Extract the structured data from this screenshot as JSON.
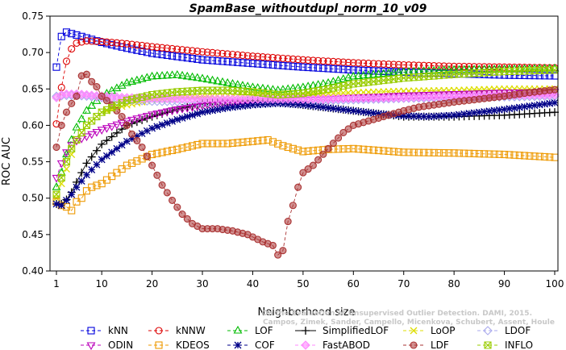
{
  "chart_data": {
    "type": "line",
    "title": "SpamBase_withoutdupl_norm_10_v09",
    "xlabel": "Neighborhood size",
    "ylabel": "ROC AUC",
    "xlim": [
      1,
      100
    ],
    "ylim": [
      0.4,
      0.75
    ],
    "xticks": [
      1,
      10,
      20,
      30,
      40,
      50,
      60,
      70,
      80,
      90,
      100
    ],
    "yticks": [
      "0.40",
      "0.45",
      "0.50",
      "0.55",
      "0.60",
      "0.65",
      "0.70",
      "0.75"
    ],
    "watermark": [
      "Campos, Zimek, Sander, Campello, Micenkova, Schubert, Assent, Houle",
      "On the Evaluation of Unsupervised Outlier Detection. DAMI, 2015."
    ],
    "series": [
      {
        "name": "kNN",
        "color": "#0000dd",
        "marker": "square",
        "dash": "4,3",
        "points": [
          [
            1,
            0.68
          ],
          [
            2,
            0.722
          ],
          [
            3,
            0.728
          ],
          [
            4,
            0.726
          ],
          [
            5,
            0.724
          ],
          [
            7,
            0.72
          ],
          [
            10,
            0.714
          ],
          [
            15,
            0.706
          ],
          [
            20,
            0.699
          ],
          [
            30,
            0.69
          ],
          [
            40,
            0.685
          ],
          [
            50,
            0.68
          ],
          [
            60,
            0.676
          ],
          [
            70,
            0.673
          ],
          [
            80,
            0.671
          ],
          [
            90,
            0.669
          ],
          [
            100,
            0.668
          ]
        ]
      },
      {
        "name": "kNNW",
        "color": "#dd0000",
        "marker": "circle",
        "dash": "4,3",
        "points": [
          [
            1,
            0.602
          ],
          [
            2,
            0.652
          ],
          [
            3,
            0.688
          ],
          [
            4,
            0.705
          ],
          [
            5,
            0.713
          ],
          [
            7,
            0.716
          ],
          [
            10,
            0.715
          ],
          [
            15,
            0.712
          ],
          [
            20,
            0.708
          ],
          [
            30,
            0.701
          ],
          [
            40,
            0.695
          ],
          [
            50,
            0.69
          ],
          [
            60,
            0.686
          ],
          [
            70,
            0.683
          ],
          [
            80,
            0.681
          ],
          [
            90,
            0.68
          ],
          [
            100,
            0.679
          ]
        ]
      },
      {
        "name": "LOF",
        "color": "#00bb00",
        "marker": "triangle",
        "dash": "4,3",
        "points": [
          [
            1,
            0.515
          ],
          [
            2,
            0.535
          ],
          [
            3,
            0.56
          ],
          [
            4,
            0.58
          ],
          [
            5,
            0.597
          ],
          [
            7,
            0.62
          ],
          [
            10,
            0.64
          ],
          [
            15,
            0.658
          ],
          [
            20,
            0.667
          ],
          [
            25,
            0.669
          ],
          [
            30,
            0.664
          ],
          [
            35,
            0.658
          ],
          [
            40,
            0.652
          ],
          [
            45,
            0.648
          ],
          [
            50,
            0.652
          ],
          [
            55,
            0.658
          ],
          [
            60,
            0.667
          ],
          [
            70,
            0.673
          ],
          [
            80,
            0.676
          ],
          [
            90,
            0.677
          ],
          [
            100,
            0.678
          ]
        ]
      },
      {
        "name": "SimplifiedLOF",
        "color": "#000000",
        "marker": "plus",
        "dash": "",
        "points": [
          [
            1,
            0.492
          ],
          [
            2,
            0.492
          ],
          [
            3,
            0.498
          ],
          [
            4,
            0.508
          ],
          [
            5,
            0.522
          ],
          [
            7,
            0.548
          ],
          [
            10,
            0.574
          ],
          [
            15,
            0.6
          ],
          [
            20,
            0.612
          ],
          [
            25,
            0.622
          ],
          [
            30,
            0.63
          ],
          [
            35,
            0.632
          ],
          [
            40,
            0.634
          ],
          [
            45,
            0.632
          ],
          [
            50,
            0.628
          ],
          [
            55,
            0.624
          ],
          [
            60,
            0.62
          ],
          [
            65,
            0.616
          ],
          [
            70,
            0.612
          ],
          [
            75,
            0.612
          ],
          [
            80,
            0.612
          ],
          [
            90,
            0.614
          ],
          [
            100,
            0.618
          ]
        ]
      },
      {
        "name": "LoOP",
        "color": "#dddd00",
        "marker": "x",
        "dash": "4,3",
        "points": [
          [
            1,
            0.5
          ],
          [
            2,
            0.52
          ],
          [
            3,
            0.54
          ],
          [
            4,
            0.56
          ],
          [
            5,
            0.58
          ],
          [
            7,
            0.6
          ],
          [
            10,
            0.618
          ],
          [
            15,
            0.628
          ],
          [
            20,
            0.635
          ],
          [
            30,
            0.64
          ],
          [
            40,
            0.642
          ],
          [
            50,
            0.643
          ],
          [
            60,
            0.645
          ],
          [
            70,
            0.647
          ],
          [
            80,
            0.648
          ],
          [
            90,
            0.65
          ],
          [
            100,
            0.65
          ]
        ]
      },
      {
        "name": "LDOF",
        "color": "#aaaaee",
        "marker": "diamond",
        "dash": "4,3",
        "points": [
          [
            1,
            0.64
          ],
          [
            3,
            0.641
          ],
          [
            5,
            0.641
          ],
          [
            7,
            0.64
          ],
          [
            10,
            0.638
          ],
          [
            15,
            0.635
          ],
          [
            20,
            0.633
          ],
          [
            30,
            0.632
          ],
          [
            40,
            0.632
          ],
          [
            50,
            0.633
          ],
          [
            60,
            0.635
          ],
          [
            70,
            0.637
          ],
          [
            80,
            0.638
          ],
          [
            90,
            0.639
          ],
          [
            100,
            0.64
          ]
        ]
      },
      {
        "name": "ODIN",
        "color": "#bb00bb",
        "marker": "triangle-down",
        "dash": "4,3",
        "points": [
          [
            1,
            0.528
          ],
          [
            2,
            0.548
          ],
          [
            3,
            0.563
          ],
          [
            4,
            0.573
          ],
          [
            5,
            0.579
          ],
          [
            7,
            0.585
          ],
          [
            10,
            0.594
          ],
          [
            15,
            0.606
          ],
          [
            20,
            0.615
          ],
          [
            25,
            0.622
          ],
          [
            30,
            0.627
          ],
          [
            35,
            0.631
          ],
          [
            40,
            0.633
          ],
          [
            45,
            0.634
          ],
          [
            50,
            0.635
          ],
          [
            55,
            0.636
          ],
          [
            60,
            0.638
          ],
          [
            70,
            0.641
          ],
          [
            80,
            0.643
          ],
          [
            90,
            0.645
          ],
          [
            100,
            0.646
          ]
        ]
      },
      {
        "name": "KDEOS",
        "color": "#ee9900",
        "marker": "square",
        "dash": "4,3",
        "points": [
          [
            1,
            0.495
          ],
          [
            2,
            0.49
          ],
          [
            3,
            0.488
          ],
          [
            4,
            0.483
          ],
          [
            5,
            0.495
          ],
          [
            6,
            0.5
          ],
          [
            7,
            0.51
          ],
          [
            8,
            0.515
          ],
          [
            10,
            0.52
          ],
          [
            12,
            0.53
          ],
          [
            15,
            0.545
          ],
          [
            20,
            0.56
          ],
          [
            25,
            0.567
          ],
          [
            30,
            0.575
          ],
          [
            35,
            0.575
          ],
          [
            40,
            0.578
          ],
          [
            43,
            0.58
          ],
          [
            46,
            0.572
          ],
          [
            50,
            0.564
          ],
          [
            55,
            0.567
          ],
          [
            60,
            0.568
          ],
          [
            70,
            0.563
          ],
          [
            80,
            0.562
          ],
          [
            90,
            0.56
          ],
          [
            100,
            0.556
          ]
        ]
      },
      {
        "name": "COF",
        "color": "#000088",
        "marker": "asterisk",
        "dash": "4,3",
        "points": [
          [
            1,
            0.492
          ],
          [
            2,
            0.49
          ],
          [
            3,
            0.497
          ],
          [
            4,
            0.505
          ],
          [
            5,
            0.515
          ],
          [
            7,
            0.532
          ],
          [
            10,
            0.553
          ],
          [
            15,
            0.578
          ],
          [
            20,
            0.596
          ],
          [
            25,
            0.608
          ],
          [
            30,
            0.618
          ],
          [
            35,
            0.624
          ],
          [
            40,
            0.628
          ],
          [
            45,
            0.63
          ],
          [
            50,
            0.628
          ],
          [
            55,
            0.624
          ],
          [
            60,
            0.62
          ],
          [
            65,
            0.616
          ],
          [
            70,
            0.613
          ],
          [
            75,
            0.612
          ],
          [
            80,
            0.614
          ],
          [
            90,
            0.622
          ],
          [
            100,
            0.631
          ]
        ]
      },
      {
        "name": "FastABOD",
        "color": "#ff88ff",
        "marker": "diamond-filled",
        "dash": "4,3",
        "points": [
          [
            1,
            0.638
          ],
          [
            2,
            0.642
          ],
          [
            3,
            0.643
          ],
          [
            5,
            0.643
          ],
          [
            7,
            0.642
          ],
          [
            10,
            0.64
          ],
          [
            15,
            0.638
          ],
          [
            20,
            0.637
          ],
          [
            30,
            0.636
          ],
          [
            40,
            0.636
          ],
          [
            50,
            0.636
          ],
          [
            60,
            0.637
          ],
          [
            70,
            0.638
          ],
          [
            80,
            0.64
          ],
          [
            90,
            0.641
          ],
          [
            100,
            0.642
          ]
        ]
      },
      {
        "name": "LDF",
        "color": "#aa3333",
        "marker": "circle-filled",
        "dash": "4,3",
        "points": [
          [
            1,
            0.57
          ],
          [
            2,
            0.6
          ],
          [
            3,
            0.618
          ],
          [
            4,
            0.63
          ],
          [
            5,
            0.64
          ],
          [
            6,
            0.668
          ],
          [
            7,
            0.67
          ],
          [
            8,
            0.66
          ],
          [
            9,
            0.653
          ],
          [
            10,
            0.64
          ],
          [
            12,
            0.628
          ],
          [
            14,
            0.612
          ],
          [
            16,
            0.588
          ],
          [
            18,
            0.57
          ],
          [
            20,
            0.545
          ],
          [
            22,
            0.518
          ],
          [
            24,
            0.497
          ],
          [
            26,
            0.478
          ],
          [
            28,
            0.465
          ],
          [
            30,
            0.458
          ],
          [
            33,
            0.458
          ],
          [
            36,
            0.455
          ],
          [
            39,
            0.45
          ],
          [
            42,
            0.44
          ],
          [
            44,
            0.435
          ],
          [
            45,
            0.422
          ],
          [
            46,
            0.428
          ],
          [
            47,
            0.468
          ],
          [
            48,
            0.49
          ],
          [
            49,
            0.515
          ],
          [
            50,
            0.535
          ],
          [
            52,
            0.545
          ],
          [
            55,
            0.568
          ],
          [
            58,
            0.59
          ],
          [
            60,
            0.6
          ],
          [
            63,
            0.606
          ],
          [
            66,
            0.612
          ],
          [
            68,
            0.616
          ],
          [
            70,
            0.62
          ],
          [
            73,
            0.625
          ],
          [
            76,
            0.628
          ],
          [
            80,
            0.632
          ],
          [
            85,
            0.636
          ],
          [
            90,
            0.64
          ],
          [
            95,
            0.645
          ],
          [
            100,
            0.649
          ]
        ]
      },
      {
        "name": "INFLO",
        "color": "#99cc00",
        "marker": "square-x",
        "dash": "4,3",
        "points": [
          [
            1,
            0.505
          ],
          [
            2,
            0.528
          ],
          [
            3,
            0.55
          ],
          [
            4,
            0.568
          ],
          [
            5,
            0.58
          ],
          [
            7,
            0.6
          ],
          [
            10,
            0.618
          ],
          [
            15,
            0.634
          ],
          [
            20,
            0.642
          ],
          [
            25,
            0.646
          ],
          [
            30,
            0.648
          ],
          [
            35,
            0.648
          ],
          [
            40,
            0.646
          ],
          [
            45,
            0.642
          ],
          [
            50,
            0.644
          ],
          [
            55,
            0.65
          ],
          [
            60,
            0.657
          ],
          [
            70,
            0.665
          ],
          [
            80,
            0.67
          ],
          [
            90,
            0.674
          ],
          [
            100,
            0.676
          ]
        ]
      }
    ]
  }
}
